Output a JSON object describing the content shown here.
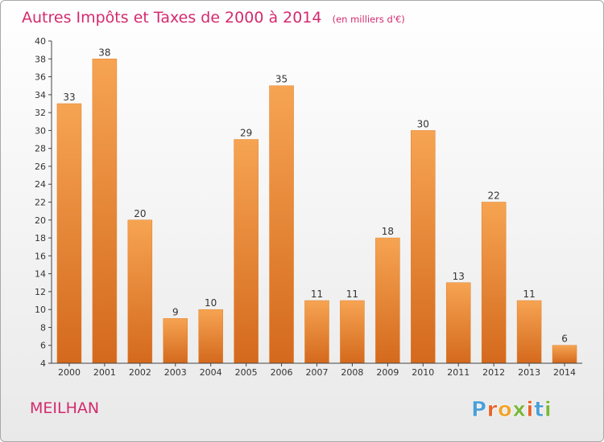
{
  "chart_data": {
    "type": "bar",
    "title": "Autres Impôts et Taxes de 2000 à 2014",
    "unit_label": "(en milliers d'€)",
    "categories": [
      "2000",
      "2001",
      "2002",
      "2003",
      "2004",
      "2005",
      "2006",
      "2007",
      "2008",
      "2009",
      "2010",
      "2011",
      "2012",
      "2013",
      "2014"
    ],
    "values": [
      33,
      38,
      20,
      9,
      10,
      29,
      35,
      11,
      11,
      18,
      30,
      13,
      22,
      11,
      6
    ],
    "ylim": [
      4,
      40
    ],
    "yticks": [
      4,
      6,
      8,
      10,
      12,
      14,
      16,
      18,
      20,
      22,
      24,
      26,
      28,
      30,
      32,
      34,
      36,
      38,
      40
    ],
    "grid": false,
    "bar_color": "#f0922e"
  },
  "commune": "MEILHAN",
  "logo": {
    "text": "Proxiti",
    "letter_colors": [
      "#4a9fd8",
      "#e8622a",
      "#f0a42a",
      "#7ab63a",
      "#e8622a",
      "#4a9fd8",
      "#7ab63a"
    ]
  }
}
